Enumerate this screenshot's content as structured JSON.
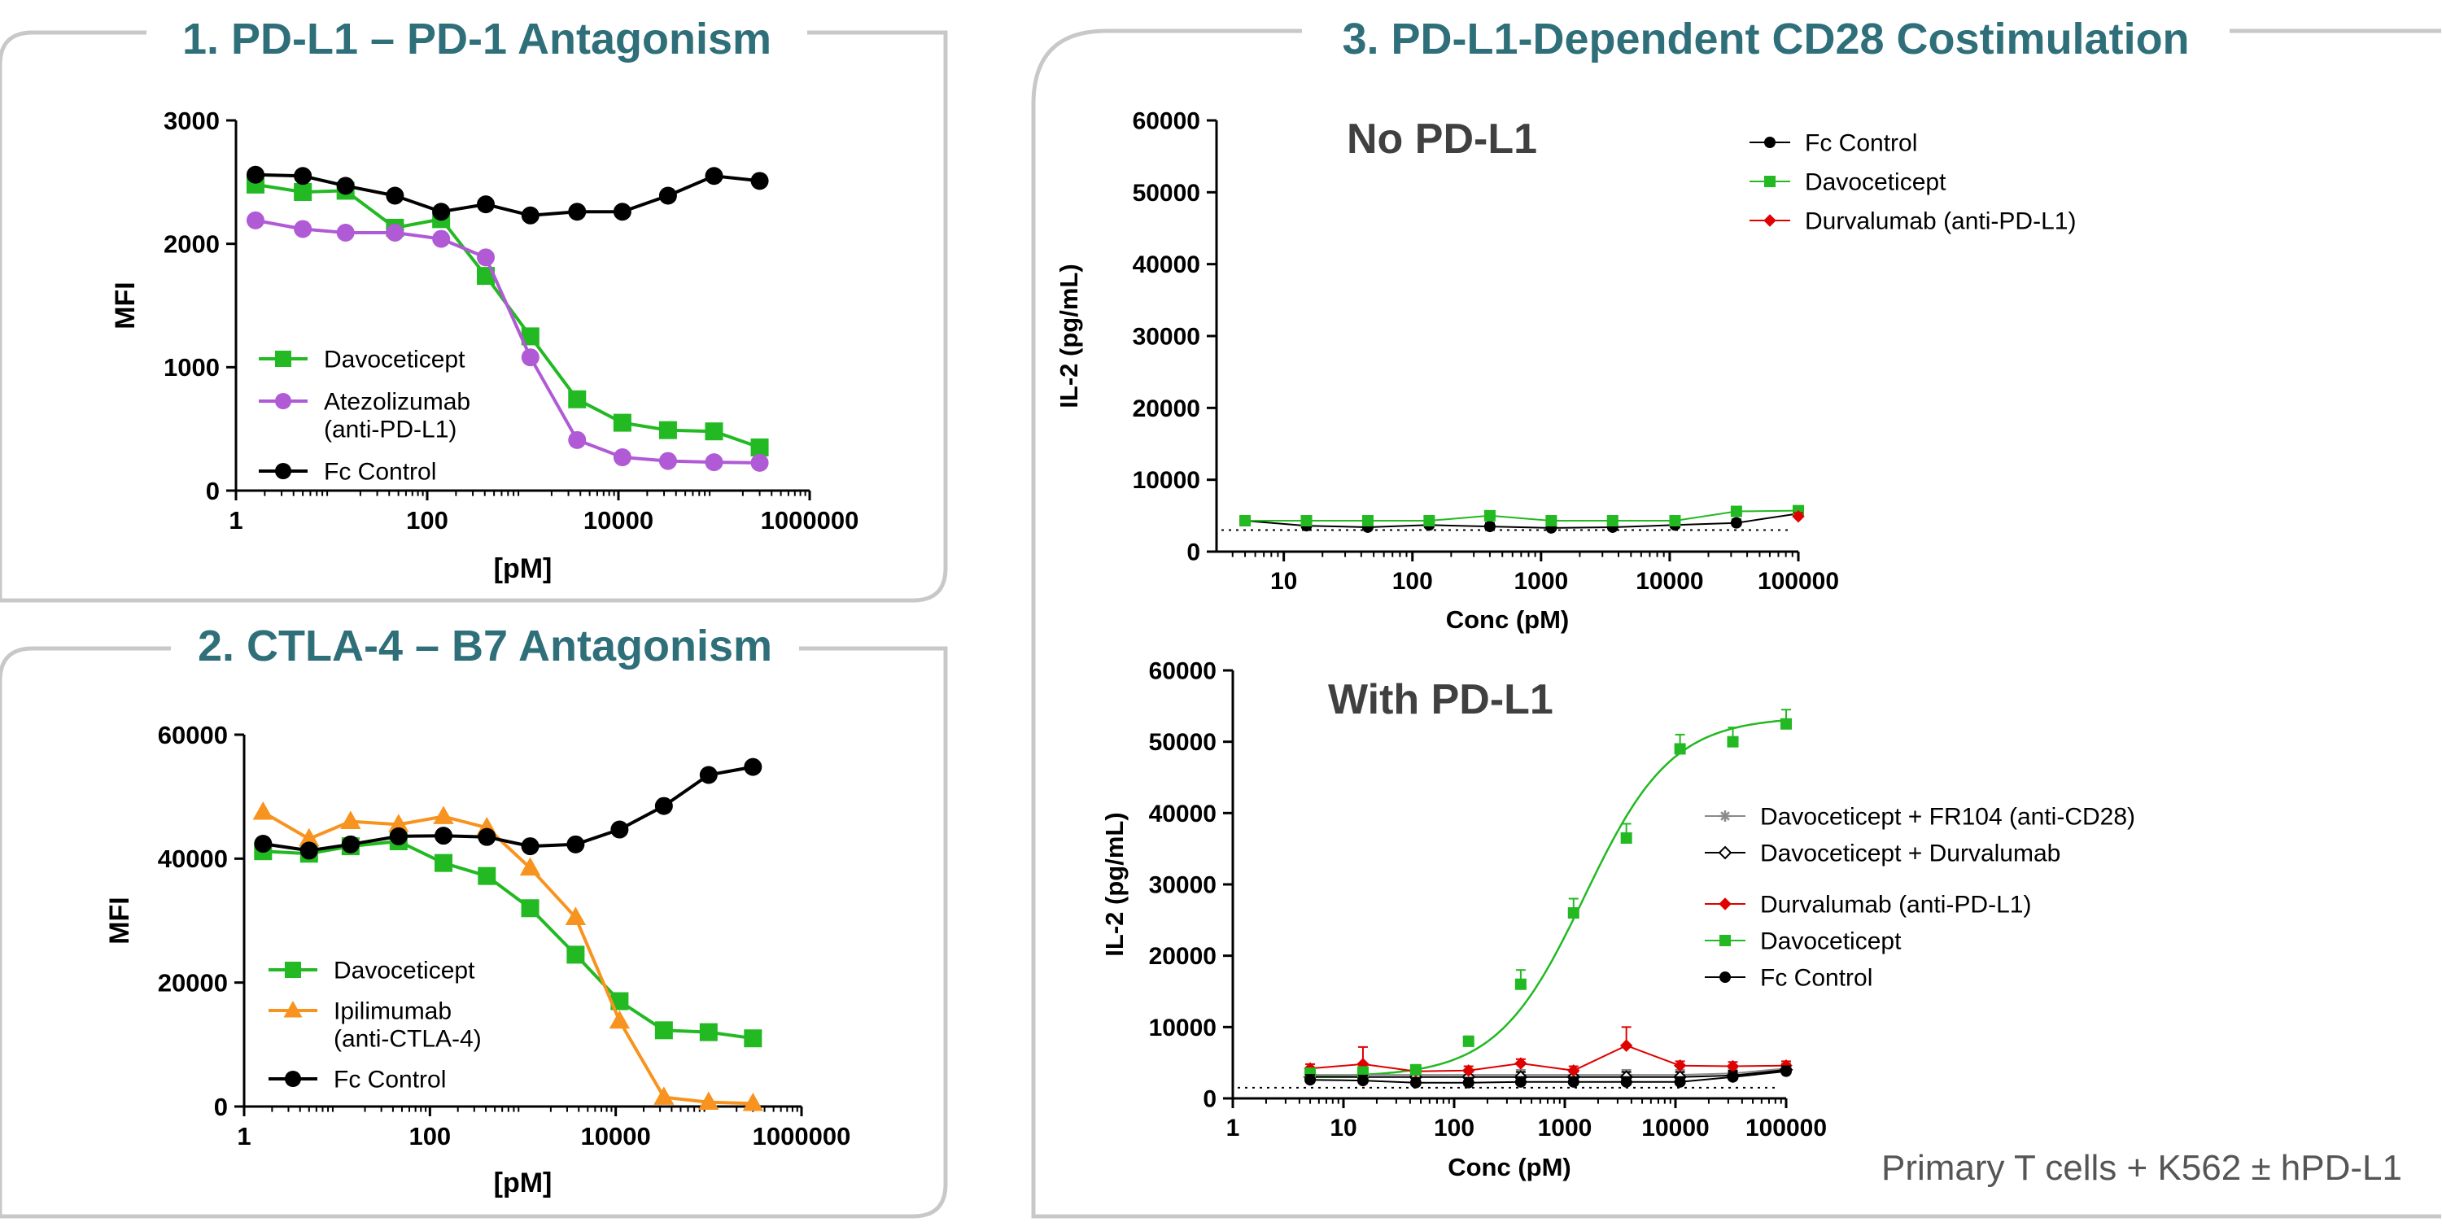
{
  "colors": {
    "teal": "#2f6f7a",
    "frame": "#c8c8c8",
    "black": "#000000",
    "green": "#22b922",
    "purple": "#b05ad6",
    "orange": "#f7931e",
    "red": "#e00000",
    "gray": "#8a8a8a",
    "footnote": "#555555"
  },
  "panels": [
    {
      "id": "p1",
      "title": "1. PD-L1 – PD-1 Antagonism"
    },
    {
      "id": "p2",
      "title": "2. CTLA-4 – B7 Antagonism"
    },
    {
      "id": "p3",
      "title": "3. PD-L1-Dependent CD28 Costimulation"
    }
  ],
  "footnote": "Primary T cells + K562 ± hPD-L1",
  "chart_data": [
    {
      "id": "pdl1",
      "type": "line",
      "title": "1. PD-L1 – PD-1 Antagonism",
      "xlabel": "[pM]",
      "ylabel": "MFI",
      "xscale": "log",
      "xlim": [
        1,
        1000000
      ],
      "ylim": [
        0,
        3000
      ],
      "xticks": [
        1,
        100,
        10000,
        1000000
      ],
      "xtick_labels": [
        "1",
        "100",
        "10000",
        "1000000"
      ],
      "yticks": [
        0,
        1000,
        2000,
        3000
      ],
      "ytick_labels": [
        "0",
        "1000",
        "2000",
        "3000"
      ],
      "legend_position": "bottom-left",
      "x": [
        1.6,
        5,
        14,
        46,
        140,
        410,
        1200,
        3700,
        11000,
        33000,
        100000,
        300000
      ],
      "series": [
        {
          "name": "Davoceticept",
          "color": "green",
          "marker": "square",
          "values": [
            2480,
            2420,
            2430,
            2130,
            2200,
            1740,
            1250,
            740,
            550,
            490,
            480,
            350
          ]
        },
        {
          "name": "Atezolizumab\n(anti-PD-L1)",
          "color": "purple",
          "marker": "circle",
          "values": [
            2190,
            2120,
            2090,
            2090,
            2040,
            1890,
            1080,
            410,
            270,
            240,
            230,
            225
          ]
        },
        {
          "name": "Fc Control",
          "color": "black",
          "marker": "circle",
          "values": [
            2560,
            2550,
            2470,
            2390,
            2260,
            2320,
            2230,
            2260,
            2260,
            2390,
            2550,
            2510
          ]
        }
      ]
    },
    {
      "id": "ctla4",
      "type": "line",
      "title": "2. CTLA-4 – B7 Antagonism",
      "xlabel": "[pM]",
      "ylabel": "MFI",
      "xscale": "log",
      "xlim": [
        1,
        1000000
      ],
      "ylim": [
        0,
        60000
      ],
      "xticks": [
        1,
        100,
        10000,
        1000000
      ],
      "xtick_labels": [
        "1",
        "100",
        "10000",
        "1000000"
      ],
      "yticks": [
        0,
        20000,
        40000,
        60000
      ],
      "ytick_labels": [
        "0",
        "20000",
        "40000",
        "60000"
      ],
      "legend_position": "bottom-left",
      "x": [
        1.6,
        5,
        14,
        46,
        140,
        410,
        1200,
        3700,
        11000,
        33000,
        100000,
        300000
      ],
      "series": [
        {
          "name": "Davoceticept",
          "color": "green",
          "marker": "square",
          "values": [
            41200,
            40800,
            42000,
            42800,
            39300,
            37200,
            32000,
            24500,
            17000,
            12300,
            12000,
            11000
          ]
        },
        {
          "name": "Ipilimumab\n(anti-CTLA-4)",
          "color": "orange",
          "marker": "triangle",
          "values": [
            47500,
            43200,
            46000,
            45500,
            46800,
            45000,
            38500,
            30500,
            13800,
            1500,
            700,
            500
          ]
        },
        {
          "name": "Fc Control",
          "color": "black",
          "marker": "circle",
          "values": [
            42400,
            41300,
            42300,
            43600,
            43700,
            43500,
            42000,
            42300,
            44700,
            48500,
            53500,
            54800
          ]
        }
      ]
    },
    {
      "id": "nopdl1",
      "type": "line",
      "title": "No PD-L1",
      "xlabel": "Conc (pM)",
      "ylabel": "IL-2 (pg/mL)",
      "xscale": "log",
      "xlim": [
        3,
        100000
      ],
      "ylim": [
        0,
        60000
      ],
      "xticks": [
        10,
        100,
        1000,
        10000,
        100000
      ],
      "xtick_labels": [
        "10",
        "100",
        "1000",
        "10000",
        "100000"
      ],
      "yticks": [
        0,
        10000,
        20000,
        30000,
        40000,
        50000,
        60000
      ],
      "ytick_labels": [
        "0",
        "10000",
        "20000",
        "30000",
        "40000",
        "50000",
        "60000"
      ],
      "baseline": 3000,
      "legend_position": "top-right",
      "x": [
        5,
        15,
        45,
        135,
        400,
        1200,
        3600,
        11000,
        33000,
        100000
      ],
      "series": [
        {
          "name": "Fc Control",
          "color": "black",
          "marker": "circle",
          "values": [
            4300,
            3600,
            3400,
            3700,
            3500,
            3300,
            3400,
            3700,
            4000,
            5300
          ]
        },
        {
          "name": "Davoceticept",
          "color": "green",
          "marker": "square",
          "values": [
            4300,
            4300,
            4300,
            4300,
            5000,
            4300,
            4300,
            4300,
            5600,
            5700
          ]
        },
        {
          "name": "Durvalumab (anti-PD-L1)",
          "color": "red",
          "marker": "diamond",
          "values": [
            null,
            null,
            null,
            null,
            null,
            null,
            null,
            null,
            null,
            4900
          ]
        }
      ]
    },
    {
      "id": "withpdl1",
      "type": "line",
      "title": "With PD-L1",
      "xlabel": "Conc (pM)",
      "ylabel": "IL-2 (pg/mL)",
      "xscale": "log",
      "xlim": [
        1,
        100000
      ],
      "ylim": [
        0,
        60000
      ],
      "xticks": [
        1,
        10,
        100,
        1000,
        10000,
        100000
      ],
      "xtick_labels": [
        "1",
        "10",
        "100",
        "1000",
        "10000",
        "100000"
      ],
      "yticks": [
        0,
        10000,
        20000,
        30000,
        40000,
        50000,
        60000
      ],
      "ytick_labels": [
        "0",
        "10000",
        "20000",
        "30000",
        "40000",
        "50000",
        "60000"
      ],
      "baseline": 1500,
      "legend_position": "right",
      "x": [
        5,
        15,
        45,
        135,
        400,
        1200,
        3600,
        11000,
        33000,
        100000
      ],
      "fit": {
        "series": "Davoceticept",
        "bottom": 3000,
        "top": 53500,
        "ec50": 1500,
        "hill": 1.1
      },
      "series": [
        {
          "name": "Davoceticept + FR104 (anti-CD28)",
          "color": "gray",
          "marker": "star",
          "values": [
            3300,
            3300,
            3300,
            3300,
            3300,
            3300,
            3300,
            3300,
            3500,
            4200
          ]
        },
        {
          "name": "Davoceticept + Durvalumab",
          "color": "black",
          "marker": "open-diamond",
          "values": [
            3000,
            3000,
            3000,
            3000,
            3000,
            3000,
            3000,
            3000,
            3200,
            4000
          ]
        },
        {
          "name": "Durvalumab (anti-PD-L1)",
          "color": "red",
          "marker": "diamond",
          "values": [
            4200,
            4800,
            3800,
            3900,
            4900,
            3900,
            7400,
            4600,
            4500,
            4600
          ]
        },
        {
          "name": "Davoceticept",
          "color": "green",
          "marker": "square",
          "values": [
            3500,
            3700,
            4000,
            8000,
            16000,
            26000,
            36500,
            49000,
            50000,
            52500
          ]
        },
        {
          "name": "Fc Control",
          "color": "black",
          "marker": "circle",
          "values": [
            2600,
            2500,
            2200,
            2200,
            2300,
            2300,
            2300,
            2300,
            3000,
            3800
          ]
        }
      ]
    }
  ]
}
